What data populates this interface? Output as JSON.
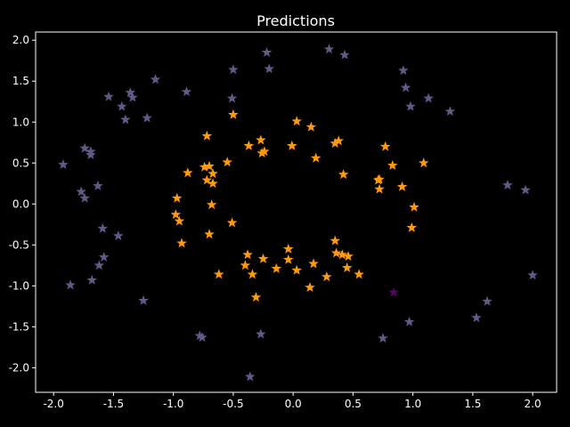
{
  "chart_data": {
    "type": "scatter",
    "title": "Predictions",
    "xlabel": "",
    "ylabel": "",
    "xlim": [
      -2.15,
      2.2
    ],
    "ylim": [
      -2.3,
      2.1
    ],
    "xticks": [
      "-2.0",
      "-1.5",
      "-1.0",
      "-0.5",
      "0.0",
      "0.5",
      "1.0",
      "1.5",
      "2.0"
    ],
    "yticks": [
      "2.0",
      "1.5",
      "1.0",
      "0.5",
      "0.0",
      "-0.5",
      "-1.0",
      "-1.5",
      "-2.0"
    ],
    "xtick_values": [
      -2.0,
      -1.5,
      -1.0,
      -0.5,
      0.0,
      0.5,
      1.0,
      1.5,
      2.0
    ],
    "ytick_values": [
      2.0,
      1.5,
      1.0,
      0.5,
      0.0,
      -0.5,
      -1.0,
      -1.5,
      -2.0
    ],
    "grid": false,
    "marker": "star",
    "colors": {
      "background": "#000000",
      "axes": "#ffffff",
      "outer": "#5f5b86",
      "inner": "#ff9a0e",
      "misclassified": "#4b0a5e"
    },
    "series": [
      {
        "color_key": "inner",
        "points": [
          [
            -0.72,
            0.83
          ],
          [
            -0.5,
            1.09
          ],
          [
            -0.37,
            0.71
          ],
          [
            -0.27,
            0.78
          ],
          [
            -0.26,
            0.62
          ],
          [
            -0.24,
            0.64
          ],
          [
            -0.01,
            0.71
          ],
          [
            0.03,
            1.01
          ],
          [
            0.15,
            0.94
          ],
          [
            0.19,
            0.56
          ],
          [
            0.35,
            0.74
          ],
          [
            0.38,
            0.77
          ],
          [
            0.42,
            0.36
          ],
          [
            0.77,
            0.7
          ],
          [
            0.83,
            0.47
          ],
          [
            1.09,
            0.5
          ],
          [
            -0.7,
            0.46
          ],
          [
            -0.74,
            0.45
          ],
          [
            -0.67,
            0.37
          ],
          [
            -0.72,
            0.29
          ],
          [
            -0.67,
            0.25
          ],
          [
            -0.55,
            0.51
          ],
          [
            -0.88,
            0.38
          ],
          [
            -0.97,
            0.07
          ],
          [
            -0.68,
            -0.01
          ],
          [
            -0.98,
            -0.13
          ],
          [
            -0.95,
            -0.21
          ],
          [
            -0.93,
            -0.48
          ],
          [
            -0.7,
            -0.37
          ],
          [
            -0.51,
            -0.23
          ],
          [
            -0.62,
            -0.86
          ],
          [
            -0.38,
            -0.62
          ],
          [
            -0.4,
            -0.75
          ],
          [
            -0.34,
            -0.86
          ],
          [
            -0.31,
            -1.14
          ],
          [
            -0.25,
            -0.67
          ],
          [
            -0.14,
            -0.79
          ],
          [
            -0.04,
            -0.55
          ],
          [
            -0.04,
            -0.68
          ],
          [
            0.03,
            -0.81
          ],
          [
            0.14,
            -1.02
          ],
          [
            0.17,
            -0.73
          ],
          [
            0.28,
            -0.89
          ],
          [
            0.35,
            -0.45
          ],
          [
            0.36,
            -0.6
          ],
          [
            0.41,
            -0.62
          ],
          [
            0.46,
            -0.64
          ],
          [
            0.45,
            -0.78
          ],
          [
            0.55,
            -0.86
          ],
          [
            0.71,
            0.29
          ],
          [
            0.72,
            0.3
          ],
          [
            0.72,
            0.18
          ],
          [
            0.91,
            0.21
          ],
          [
            1.01,
            -0.04
          ],
          [
            0.99,
            -0.29
          ]
        ]
      },
      {
        "color_key": "outer",
        "points": [
          [
            -1.92,
            0.48
          ],
          [
            -1.74,
            0.68
          ],
          [
            -1.69,
            0.6
          ],
          [
            -1.69,
            0.64
          ],
          [
            -1.77,
            0.15
          ],
          [
            -1.74,
            0.07
          ],
          [
            -1.63,
            0.22
          ],
          [
            -1.59,
            -0.3
          ],
          [
            -1.46,
            -0.39
          ],
          [
            -1.58,
            -0.65
          ],
          [
            -1.62,
            -0.75
          ],
          [
            -1.68,
            -0.93
          ],
          [
            -1.86,
            -0.99
          ],
          [
            -1.25,
            -1.18
          ],
          [
            -1.54,
            1.31
          ],
          [
            -1.43,
            1.19
          ],
          [
            -1.36,
            1.36
          ],
          [
            -1.34,
            1.3
          ],
          [
            -1.4,
            1.03
          ],
          [
            -1.22,
            1.05
          ],
          [
            -1.15,
            1.52
          ],
          [
            -0.89,
            1.37
          ],
          [
            -0.5,
            1.64
          ],
          [
            -0.51,
            1.29
          ],
          [
            -0.22,
            1.85
          ],
          [
            -0.2,
            1.65
          ],
          [
            0.3,
            1.89
          ],
          [
            0.43,
            1.82
          ],
          [
            0.92,
            1.63
          ],
          [
            0.94,
            1.42
          ],
          [
            0.98,
            1.19
          ],
          [
            1.13,
            1.29
          ],
          [
            1.31,
            1.13
          ],
          [
            1.79,
            0.23
          ],
          [
            1.94,
            0.17
          ],
          [
            2.0,
            -0.87
          ],
          [
            1.62,
            -1.19
          ],
          [
            1.53,
            -1.39
          ],
          [
            0.97,
            -1.44
          ],
          [
            0.75,
            -1.64
          ],
          [
            -0.78,
            -1.61
          ],
          [
            -0.76,
            -1.63
          ],
          [
            -0.27,
            -1.59
          ],
          [
            -0.36,
            -2.11
          ]
        ]
      },
      {
        "color_key": "misclassified",
        "points": [
          [
            0.84,
            -1.08
          ]
        ]
      }
    ]
  }
}
